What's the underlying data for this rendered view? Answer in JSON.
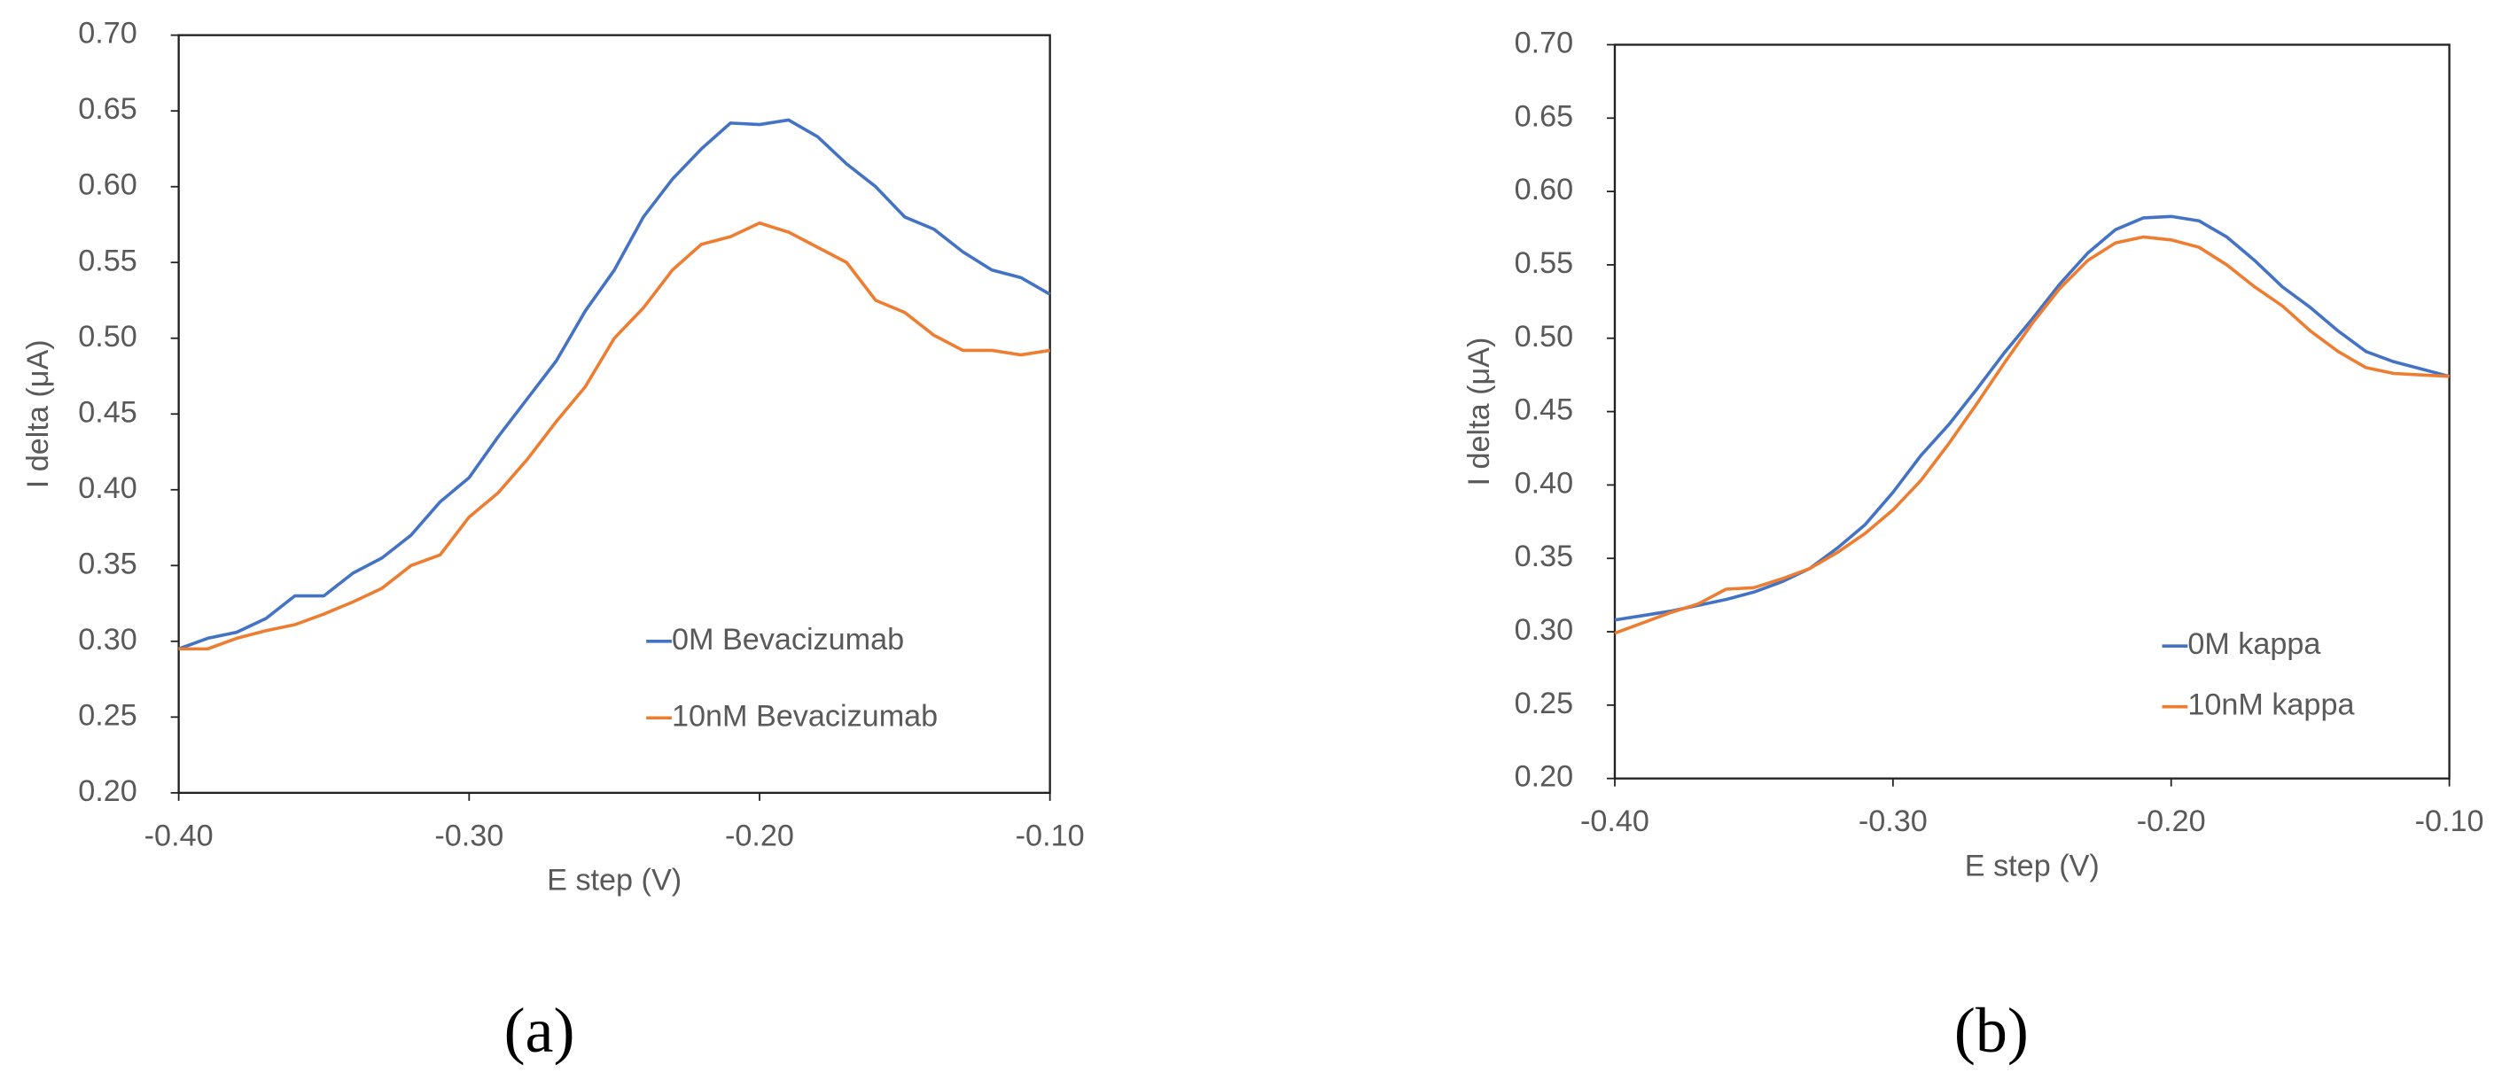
{
  "chart_data": [
    {
      "type": "line",
      "panel_label": "(a)",
      "x_label": "E step (V)",
      "y_label": "I delta (μA)",
      "x": [
        -0.4,
        -0.39,
        -0.38,
        -0.37,
        -0.36,
        -0.35,
        -0.34,
        -0.33,
        -0.32,
        -0.31,
        -0.3,
        -0.29,
        -0.28,
        -0.27,
        -0.26,
        -0.25,
        -0.24,
        -0.23,
        -0.22,
        -0.21,
        -0.2,
        -0.19,
        -0.18,
        -0.17,
        -0.16,
        -0.15,
        -0.14,
        -0.13,
        -0.12,
        -0.11,
        -0.1
      ],
      "series": [
        {
          "name": "0M Bevacizumab",
          "color": "#4472c4",
          "values": [
            0.295,
            0.302,
            0.306,
            0.315,
            0.33,
            0.33,
            0.345,
            0.355,
            0.37,
            0.392,
            0.408,
            0.435,
            0.46,
            0.485,
            0.518,
            0.545,
            0.58,
            0.605,
            0.625,
            0.642,
            0.641,
            0.644,
            0.633,
            0.615,
            0.6,
            0.58,
            0.572,
            0.557,
            0.545,
            0.54,
            0.529
          ]
        },
        {
          "name": "10nM Bevacizumab",
          "color": "#ed7d31",
          "values": [
            0.295,
            0.295,
            0.302,
            0.307,
            0.311,
            0.318,
            0.326,
            0.335,
            0.35,
            0.357,
            0.382,
            0.398,
            0.42,
            0.445,
            0.468,
            0.5,
            0.52,
            0.545,
            0.562,
            0.567,
            0.576,
            0.57,
            0.56,
            0.55,
            0.525,
            0.517,
            0.502,
            0.492,
            0.492,
            0.489,
            0.492
          ]
        }
      ],
      "xlim": [
        -0.4,
        -0.1
      ],
      "xticks": [
        {
          "value": -0.4,
          "label": "-0.40"
        },
        {
          "value": -0.3,
          "label": "-0.30"
        },
        {
          "value": -0.2,
          "label": "-0.20"
        },
        {
          "value": -0.1,
          "label": "-0.10"
        }
      ],
      "ylim": [
        0.2,
        0.7
      ],
      "yticks": [
        {
          "value": 0.2,
          "label": "0.20"
        },
        {
          "value": 0.25,
          "label": "0.25"
        },
        {
          "value": 0.3,
          "label": "0.30"
        },
        {
          "value": 0.35,
          "label": "0.35"
        },
        {
          "value": 0.4,
          "label": "0.40"
        },
        {
          "value": 0.45,
          "label": "0.45"
        },
        {
          "value": 0.5,
          "label": "0.50"
        },
        {
          "value": 0.55,
          "label": "0.55"
        },
        {
          "value": 0.6,
          "label": "0.60"
        },
        {
          "value": 0.65,
          "label": "0.65"
        },
        {
          "value": 0.7,
          "label": "0.70"
        }
      ],
      "grid": false,
      "legend": "lower right"
    },
    {
      "type": "line",
      "panel_label": "(b)",
      "x_label": "E step (V)",
      "y_label": "I delta (μA)",
      "x": [
        -0.4,
        -0.39,
        -0.38,
        -0.37,
        -0.36,
        -0.35,
        -0.34,
        -0.33,
        -0.32,
        -0.31,
        -0.3,
        -0.29,
        -0.28,
        -0.27,
        -0.26,
        -0.25,
        -0.24,
        -0.23,
        -0.22,
        -0.21,
        -0.2,
        -0.19,
        -0.18,
        -0.17,
        -0.16,
        -0.15,
        -0.14,
        -0.13,
        -0.12,
        -0.11,
        -0.1
      ],
      "series": [
        {
          "name": "0M kappa",
          "color": "#4472c4",
          "values": [
            0.308,
            0.311,
            0.314,
            0.318,
            0.322,
            0.327,
            0.334,
            0.343,
            0.357,
            0.373,
            0.395,
            0.42,
            0.441,
            0.465,
            0.49,
            0.513,
            0.537,
            0.558,
            0.574,
            0.582,
            0.583,
            0.58,
            0.569,
            0.553,
            0.535,
            0.521,
            0.505,
            0.491,
            0.484,
            0.479,
            0.474
          ]
        },
        {
          "name": "10nM kappa",
          "color": "#ed7d31",
          "values": [
            0.299,
            0.306,
            0.313,
            0.319,
            0.329,
            0.33,
            0.336,
            0.343,
            0.354,
            0.367,
            0.383,
            0.403,
            0.428,
            0.455,
            0.483,
            0.51,
            0.534,
            0.553,
            0.565,
            0.569,
            0.567,
            0.562,
            0.55,
            0.535,
            0.522,
            0.505,
            0.491,
            0.48,
            0.476,
            0.475,
            0.474
          ]
        }
      ],
      "xlim": [
        -0.4,
        -0.1
      ],
      "xticks": [
        {
          "value": -0.4,
          "label": "-0.40"
        },
        {
          "value": -0.3,
          "label": "-0.30"
        },
        {
          "value": -0.2,
          "label": "-0.20"
        },
        {
          "value": -0.1,
          "label": "-0.10"
        }
      ],
      "ylim": [
        0.2,
        0.7
      ],
      "yticks": [
        {
          "value": 0.2,
          "label": "0.20"
        },
        {
          "value": 0.25,
          "label": "0.25"
        },
        {
          "value": 0.3,
          "label": "0.30"
        },
        {
          "value": 0.35,
          "label": "0.35"
        },
        {
          "value": 0.4,
          "label": "0.40"
        },
        {
          "value": 0.45,
          "label": "0.45"
        },
        {
          "value": 0.5,
          "label": "0.50"
        },
        {
          "value": 0.55,
          "label": "0.55"
        },
        {
          "value": 0.6,
          "label": "0.60"
        },
        {
          "value": 0.65,
          "label": "0.65"
        },
        {
          "value": 0.7,
          "label": "0.70"
        }
      ],
      "grid": false,
      "legend": "lower right"
    }
  ]
}
